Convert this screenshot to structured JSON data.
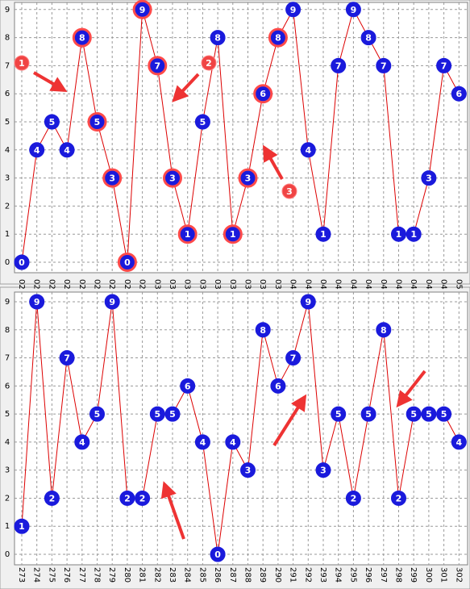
{
  "chart_data": [
    {
      "type": "line",
      "categories": [
        "02",
        "02",
        "02",
        "02",
        "02",
        "02",
        "02",
        "02",
        "02",
        "03",
        "03",
        "03",
        "03",
        "03",
        "03",
        "03",
        "03",
        "03",
        "04",
        "04",
        "04",
        "04",
        "04",
        "04",
        "04",
        "04",
        "04",
        "04",
        "04",
        "05"
      ],
      "series": [
        {
          "color": "#dd0000",
          "marker_color": "#1a1adc",
          "values": [
            0,
            4,
            5,
            4,
            8,
            5,
            3,
            0,
            9,
            7,
            3,
            1,
            5,
            8,
            1,
            3,
            6,
            8,
            9,
            4,
            1,
            7,
            9,
            8,
            7,
            1,
            1,
            3,
            7,
            6
          ],
          "edge_colors": [
            "#1a1adc",
            "#1a1adc",
            "#1a1adc",
            "#1a1adc",
            "#ff4a4a",
            "#ff4a4a",
            "#ff4a4a",
            "#ff4a4a",
            "#ff4a4a",
            "#ff4a4a",
            "#ff4a4a",
            "#ff4a4a",
            "#1a1adc",
            "#1a1adc",
            "#ff4a4a",
            "#ff4a4a",
            "#ff4a4a",
            "#ff4a4a",
            "#1a1adc",
            "#1a1adc",
            "#1a1adc",
            "#1a1adc",
            "#1a1adc",
            "#1a1adc",
            "#1a1adc",
            "#1a1adc",
            "#1a1adc",
            "#1a1adc",
            "#1a1adc",
            "#1a1adc"
          ]
        }
      ],
      "ylim": [
        0,
        9
      ],
      "yticks": [
        0,
        1,
        2,
        3,
        4,
        5,
        6,
        7,
        8,
        9
      ],
      "grid": true,
      "annotations": [
        "1",
        "2",
        "3"
      ]
    },
    {
      "type": "line",
      "categories": [
        "273",
        "274",
        "275",
        "276",
        "277",
        "278",
        "279",
        "280",
        "281",
        "282",
        "283",
        "284",
        "285",
        "286",
        "287",
        "288",
        "289",
        "290",
        "291",
        "292",
        "293",
        "294",
        "295",
        "296",
        "297",
        "298",
        "299",
        "300",
        "301",
        "302"
      ],
      "series": [
        {
          "color": "#dd0000",
          "marker_color": "#1a1adc",
          "values": [
            1,
            9,
            2,
            7,
            4,
            5,
            9,
            2,
            2,
            5,
            5,
            6,
            4,
            0,
            4,
            3,
            8,
            6,
            7,
            9,
            3,
            5,
            2,
            5,
            8,
            2,
            5,
            5,
            5,
            4
          ]
        }
      ],
      "ylim": [
        0,
        9
      ],
      "yticks": [
        0,
        1,
        2,
        3,
        4,
        5,
        6,
        7,
        8,
        9
      ],
      "grid": true
    }
  ]
}
